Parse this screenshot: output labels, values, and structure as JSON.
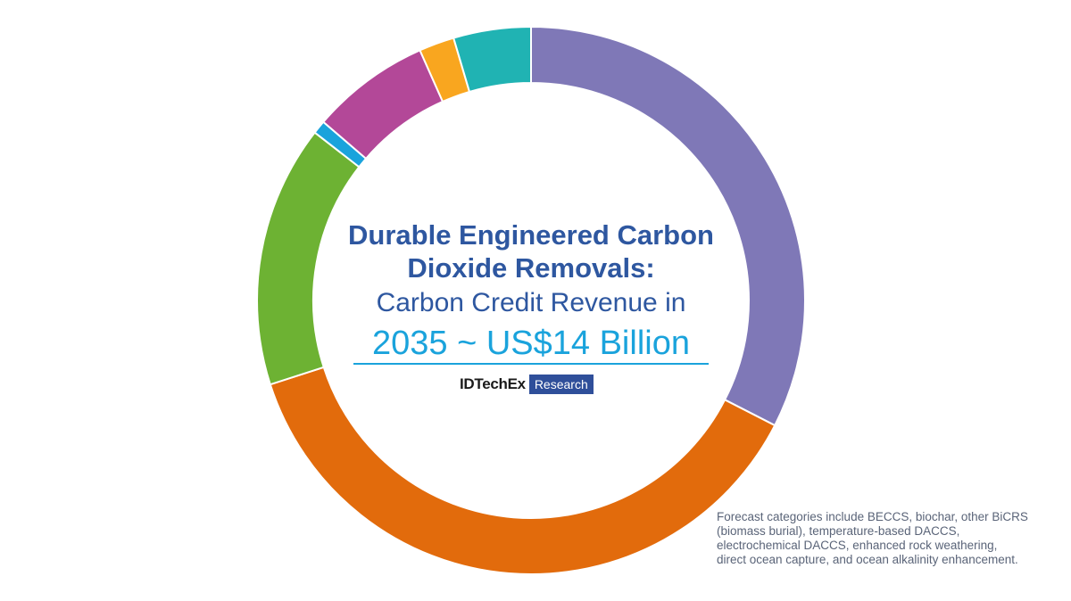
{
  "chart_data": {
    "type": "pie",
    "title": "",
    "slices": [
      {
        "value": 32.8,
        "color": "#7f78b7"
      },
      {
        "value": 37.8,
        "color": "#e26b0c"
      },
      {
        "value": 15.6,
        "color": "#6db233"
      },
      {
        "value": 0.8,
        "color": "#1aa3dc"
      },
      {
        "value": 7.1,
        "color": "#b34898"
      },
      {
        "value": 2.1,
        "color": "#f9a61f"
      },
      {
        "value": 4.6,
        "color": "#20b3b3"
      }
    ]
  },
  "center": {
    "title_line1": "Durable Engineered Carbon",
    "title_line2": "Dioxide Removals:",
    "subtitle": "Carbon Credit Revenue in",
    "highlight": "2035 ~ US$14 Billion"
  },
  "logo": {
    "brand": "IDTechEx",
    "tag": "Research"
  },
  "footnote": {
    "lines": [
      "Forecast categories include BECCS, biochar, other BiCRS",
      "(biomass burial), temperature-based DACCS,",
      "electrochemical DACCS, enhanced rock weathering,",
      "direct ocean capture, and ocean alkalinity enhancement."
    ]
  }
}
